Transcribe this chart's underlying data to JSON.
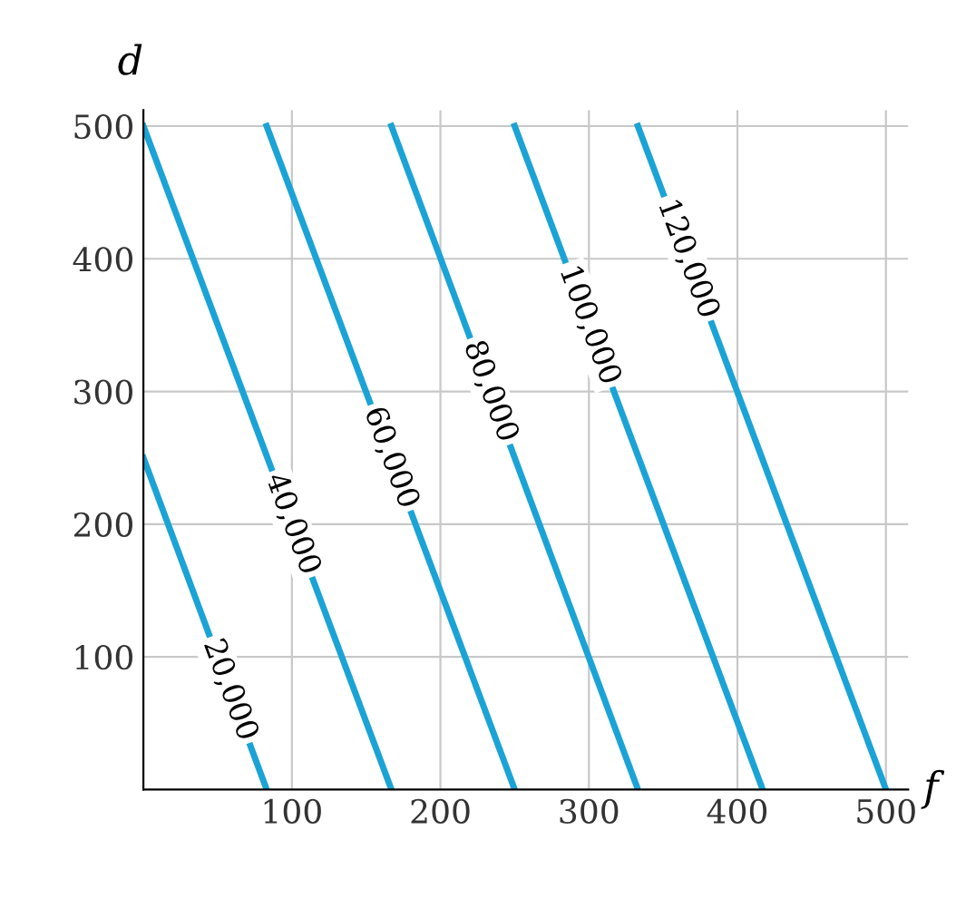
{
  "chart_data": {
    "type": "line",
    "xlabel": "f",
    "ylabel": "d",
    "xlim": [
      0,
      515
    ],
    "ylim": [
      0,
      512
    ],
    "xticks": [
      100,
      200,
      300,
      400,
      500
    ],
    "yticks": [
      100,
      200,
      300,
      400,
      500
    ],
    "grid": true,
    "legend": false,
    "marker": "none",
    "line_style": "solid",
    "series": [
      {
        "name": "20,000",
        "color": "#1ba3d6",
        "x": [
          0,
          83
        ],
        "values": [
          250,
          0
        ]
      },
      {
        "name": "40,000",
        "color": "#1ba3d6",
        "x": [
          0,
          167
        ],
        "values": [
          500,
          0
        ]
      },
      {
        "name": "60,000",
        "color": "#1ba3d6",
        "x": [
          83,
          250
        ],
        "values": [
          500,
          0
        ]
      },
      {
        "name": "80,000",
        "color": "#1ba3d6",
        "x": [
          167,
          333
        ],
        "values": [
          500,
          0
        ]
      },
      {
        "name": "100,000",
        "color": "#1ba3d6",
        "x": [
          250,
          417
        ],
        "values": [
          500,
          0
        ]
      },
      {
        "name": "120,000",
        "color": "#1ba3d6",
        "x": [
          333,
          500
        ],
        "values": [
          500,
          0
        ]
      }
    ]
  }
}
